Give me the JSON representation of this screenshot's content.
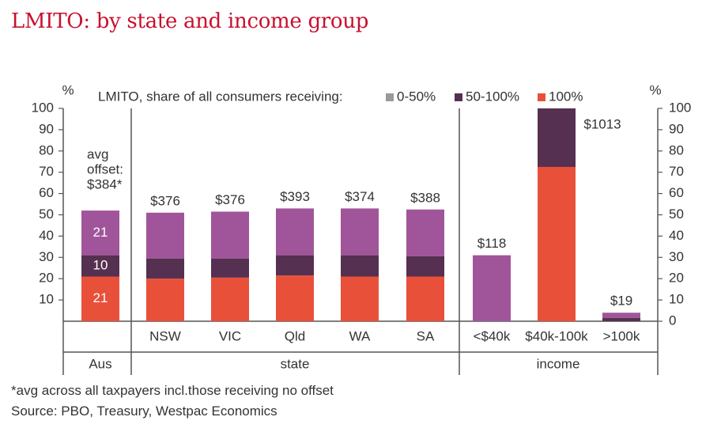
{
  "title": "LMITO: by state and income group",
  "footnotes": [
    "*avg across all taxpayers incl.those receiving no offset",
    "Source: PBO, Treasury, Westpac Economics"
  ],
  "colors": {
    "share_0_50": "#a0559a",
    "share_50_100": "#553050",
    "share_100": "#e8503a",
    "title": "#c8102e"
  },
  "chart_data": {
    "type": "bar",
    "stacked": true,
    "title": "LMITO: by state and income group",
    "legend_title": "LMITO, share of all consumers receiving:",
    "legend_position": "top",
    "ylabel_left": "%",
    "ylabel_right": "%",
    "ylim": [
      0,
      100
    ],
    "yticks_left": [
      "10",
      "20",
      "30",
      "40",
      "50",
      "60",
      "70",
      "80",
      "90",
      "100"
    ],
    "yticks_right": [
      "0",
      "10",
      "20",
      "30",
      "40",
      "50",
      "60",
      "70",
      "80",
      "90",
      "100"
    ],
    "categories": [
      "Aus",
      "NSW",
      "VIC",
      "Qld",
      "WA",
      "SA",
      "<$40k",
      "$40k-100k",
      ">100k"
    ],
    "groups": [
      {
        "label": "Aus",
        "categories": [
          "Aus"
        ]
      },
      {
        "label": "state",
        "categories": [
          "NSW",
          "VIC",
          "Qld",
          "WA",
          "SA"
        ]
      },
      {
        "label": "income",
        "categories": [
          "<$40k",
          "$40k-100k",
          ">100k"
        ]
      }
    ],
    "series": [
      {
        "name": "100%",
        "color": "#e8503a",
        "values": [
          21,
          20,
          20.5,
          21.5,
          21,
          21,
          0,
          72.5,
          0
        ]
      },
      {
        "name": "50-100%",
        "color": "#553050",
        "values": [
          10,
          9.5,
          9,
          9.5,
          10,
          9.5,
          0,
          27.5,
          1.5
        ]
      },
      {
        "name": "0-50%",
        "color": "#a0559a",
        "values": [
          21,
          21.5,
          22,
          22,
          22,
          22,
          31,
          0,
          2.5
        ]
      }
    ],
    "avg_offset_labels": [
      "",
      "$376",
      "$376",
      "$393",
      "$374",
      "$388",
      "$118",
      "$1013",
      "$19"
    ],
    "aus_annotation": [
      "avg",
      "offset:",
      "$384*"
    ],
    "segment_labels_aus": [
      "21",
      "10",
      "21"
    ]
  }
}
